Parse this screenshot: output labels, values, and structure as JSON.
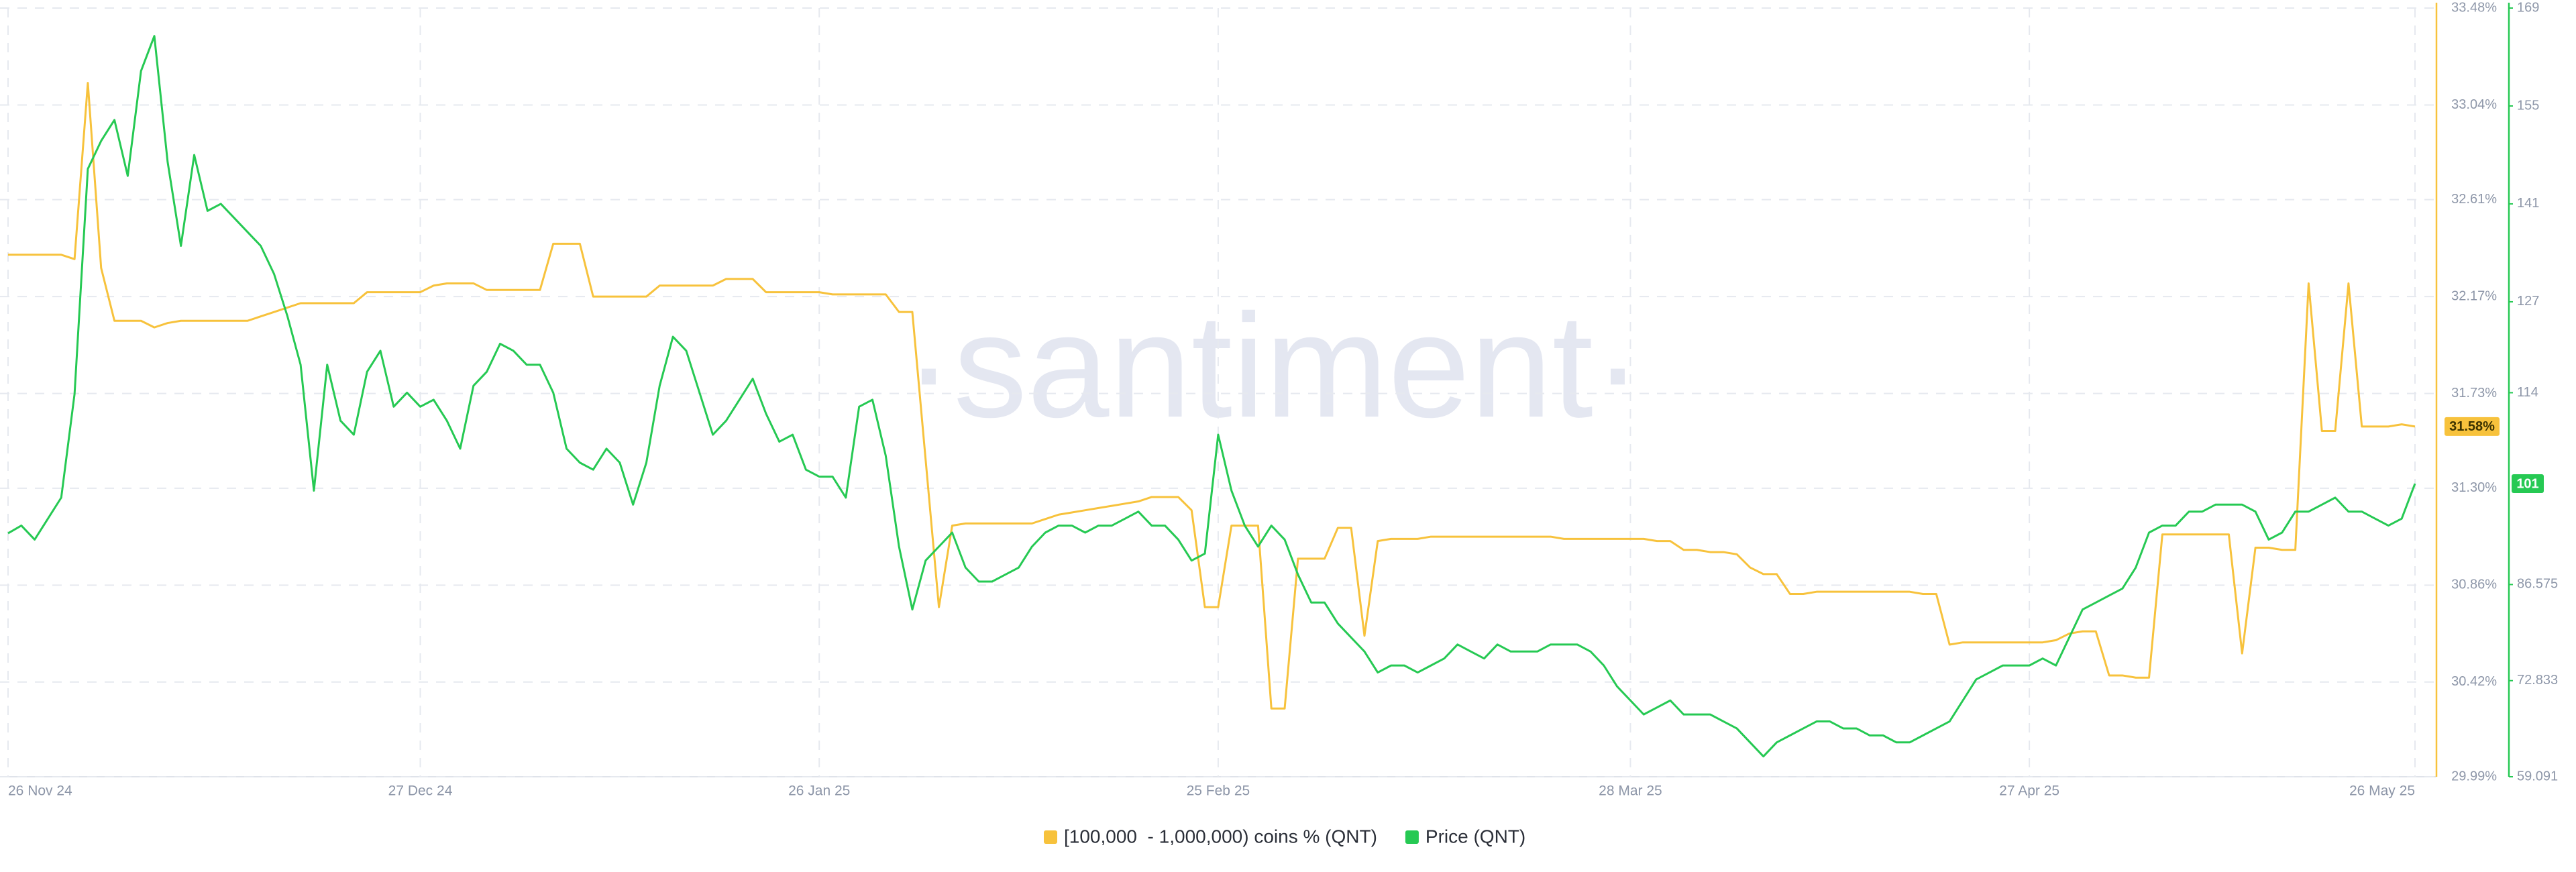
{
  "chart_data": {
    "type": "line",
    "watermark": "·santiment·",
    "categories": [
      "26 Nov 24",
      null,
      null,
      null,
      null,
      null,
      null,
      null,
      null,
      null,
      null,
      null,
      null,
      null,
      null,
      null,
      null,
      null,
      null,
      null,
      null,
      null,
      null,
      null,
      null,
      null,
      null,
      null,
      null,
      null,
      null,
      "27 Dec 24",
      null,
      null,
      null,
      null,
      null,
      null,
      null,
      null,
      null,
      null,
      null,
      null,
      null,
      null,
      null,
      null,
      null,
      null,
      null,
      null,
      null,
      null,
      null,
      null,
      null,
      null,
      null,
      null,
      null,
      "26 Jan 25",
      null,
      null,
      null,
      null,
      null,
      null,
      null,
      null,
      null,
      null,
      null,
      null,
      null,
      null,
      null,
      null,
      null,
      null,
      null,
      null,
      null,
      null,
      null,
      null,
      null,
      null,
      null,
      null,
      null,
      "25 Feb 25",
      null,
      null,
      null,
      null,
      null,
      null,
      null,
      null,
      null,
      null,
      null,
      null,
      null,
      null,
      null,
      null,
      null,
      null,
      null,
      null,
      null,
      null,
      null,
      null,
      null,
      null,
      null,
      null,
      null,
      null,
      "28 Mar 25",
      null,
      null,
      null,
      null,
      null,
      null,
      null,
      null,
      null,
      null,
      null,
      null,
      null,
      null,
      null,
      null,
      null,
      null,
      null,
      null,
      null,
      null,
      null,
      null,
      null,
      null,
      null,
      null,
      null,
      "27 Apr 25",
      null,
      null,
      null,
      null,
      null,
      null,
      null,
      null,
      null,
      null,
      null,
      null,
      null,
      null,
      null,
      null,
      null,
      null,
      null,
      null,
      null,
      null,
      null,
      null,
      null,
      null,
      null,
      null,
      "26 May 25"
    ],
    "series": [
      {
        "name": "[100,000  - 1,000,000) coins % (QNT)",
        "color": "#f7c23c",
        "axis": "y",
        "last_label": "31.58%",
        "values": [
          32.36,
          32.36,
          32.36,
          32.36,
          32.36,
          32.34,
          33.14,
          32.3,
          32.06,
          32.06,
          32.06,
          32.03,
          32.05,
          32.06,
          32.06,
          32.06,
          32.06,
          32.06,
          32.06,
          32.08,
          32.1,
          32.12,
          32.14,
          32.14,
          32.14,
          32.14,
          32.14,
          32.19,
          32.19,
          32.19,
          32.19,
          32.19,
          32.22,
          32.23,
          32.23,
          32.23,
          32.2,
          32.2,
          32.2,
          32.2,
          32.2,
          32.41,
          32.41,
          32.41,
          32.17,
          32.17,
          32.17,
          32.17,
          32.17,
          32.22,
          32.22,
          32.22,
          32.22,
          32.22,
          32.25,
          32.25,
          32.25,
          32.19,
          32.19,
          32.19,
          32.19,
          32.19,
          32.18,
          32.18,
          32.18,
          32.18,
          32.18,
          32.1,
          32.1,
          31.43,
          30.76,
          31.13,
          31.14,
          31.14,
          31.14,
          31.14,
          31.14,
          31.14,
          31.16,
          31.18,
          31.19,
          31.2,
          31.21,
          31.22,
          31.23,
          31.24,
          31.26,
          31.26,
          31.26,
          31.2,
          30.76,
          30.76,
          31.13,
          31.13,
          31.13,
          30.3,
          30.3,
          30.98,
          30.98,
          30.98,
          31.12,
          31.12,
          30.63,
          31.06,
          31.07,
          31.07,
          31.07,
          31.08,
          31.08,
          31.08,
          31.08,
          31.08,
          31.08,
          31.08,
          31.08,
          31.08,
          31.08,
          31.07,
          31.07,
          31.07,
          31.07,
          31.07,
          31.07,
          31.07,
          31.06,
          31.06,
          31.02,
          31.02,
          31.01,
          31.01,
          31.0,
          30.94,
          30.91,
          30.91,
          30.82,
          30.82,
          30.83,
          30.83,
          30.83,
          30.83,
          30.83,
          30.83,
          30.83,
          30.83,
          30.82,
          30.82,
          30.59,
          30.6,
          30.6,
          30.6,
          30.6,
          30.6,
          30.6,
          30.6,
          30.61,
          30.64,
          30.65,
          30.65,
          30.45,
          30.45,
          30.44,
          30.44,
          31.09,
          31.09,
          31.09,
          31.09,
          31.09,
          31.09,
          30.55,
          31.03,
          31.03,
          31.02,
          31.02,
          32.23,
          31.56,
          31.56,
          32.23,
          31.58,
          31.58,
          31.58,
          31.59,
          31.58
        ]
      },
      {
        "name": "Price (QNT)",
        "color": "#26c953",
        "axis": "y2",
        "last_label": "101",
        "values": [
          93.9,
          95,
          93,
          96,
          99,
          113.8,
          146,
          150,
          153,
          145,
          160,
          165,
          147,
          135,
          148,
          140,
          141,
          139,
          137,
          135,
          131,
          125,
          118,
          100,
          118,
          110,
          108,
          117,
          120,
          112,
          114,
          112,
          113,
          110,
          106,
          115,
          117,
          121,
          120,
          118,
          118,
          114,
          106,
          104,
          103,
          106,
          104,
          98,
          104,
          115,
          122,
          120,
          114,
          108,
          110,
          113,
          116,
          111,
          107,
          108,
          103,
          102,
          102,
          99,
          112,
          113,
          105,
          92,
          83,
          90,
          92,
          94,
          89,
          87,
          87,
          88,
          89,
          92,
          94,
          95,
          95,
          94,
          95,
          95,
          96,
          97,
          95,
          95,
          93,
          90,
          91,
          108,
          100,
          95,
          92,
          95,
          93,
          88,
          84,
          84,
          81,
          79,
          77,
          74,
          75,
          75,
          74,
          75,
          76,
          78,
          77,
          76,
          78,
          77,
          77,
          77,
          78,
          78,
          78,
          77,
          75,
          72,
          70,
          68,
          69,
          70,
          68,
          68,
          68,
          67,
          66,
          64,
          62,
          64,
          65,
          66,
          67,
          67,
          66,
          66,
          65,
          65,
          64,
          64,
          65,
          66,
          67,
          70,
          73,
          74,
          75,
          75,
          75,
          76,
          75,
          79,
          83,
          84,
          85,
          86,
          89,
          94,
          95,
          95,
          97,
          97,
          98,
          98,
          98,
          97,
          93,
          94,
          97,
          97,
          98,
          99,
          97,
          97,
          96,
          95,
          96,
          101
        ]
      }
    ],
    "ylim": [
      29.99,
      33.48
    ],
    "yticks": [
      {
        "value": 29.99,
        "label": "29.99%"
      },
      {
        "value": 30.42,
        "label": "30.42%"
      },
      {
        "value": 30.86,
        "label": "30.86%"
      },
      {
        "value": 31.3,
        "label": "31.30%"
      },
      {
        "value": 31.73,
        "label": "31.73%"
      },
      {
        "value": 32.17,
        "label": "32.17%"
      },
      {
        "value": 32.61,
        "label": "32.61%"
      },
      {
        "value": 33.04,
        "label": "33.04%"
      },
      {
        "value": 33.48,
        "label": "33.48%"
      }
    ],
    "y2lim": [
      59.091,
      169
    ],
    "y2ticks": [
      59.091,
      72.833,
      86.575,
      114,
      127,
      141,
      155,
      169
    ],
    "grid": true
  }
}
